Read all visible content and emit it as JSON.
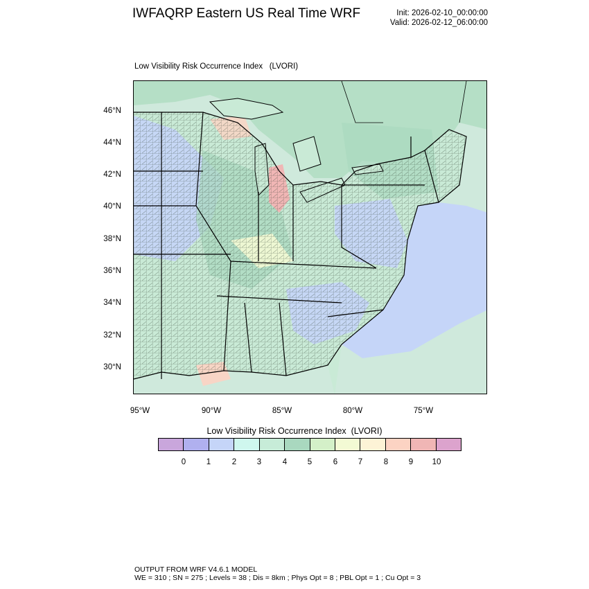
{
  "header": {
    "title": "IWFAQRP Eastern US Real Time WRF",
    "init": "Init: 2026-02-10_00:00:00",
    "valid": "Valid: 2026-02-12_06:00:00"
  },
  "field_title": "Low Visibility Risk Occurrence Index   (LVORI)",
  "map": {
    "lat_labels": [
      "46°N",
      "44°N",
      "42°N",
      "40°N",
      "38°N",
      "36°N",
      "34°N",
      "32°N",
      "30°N"
    ],
    "lon_labels": [
      "95°W",
      "90°W",
      "85°W",
      "80°W",
      "75°W"
    ],
    "colors": {
      "ocean": "#cfe9dc",
      "land_base": "#c9ead6",
      "canada": "#b5dfc6",
      "lakes": "#c9ead6",
      "boundaries": "#000000"
    }
  },
  "colorbar": {
    "title": "Low Visibility Risk Occurrence Index  (LVORI)",
    "labels": [
      "0",
      "1",
      "2",
      "3",
      "4",
      "5",
      "6",
      "7",
      "8",
      "9",
      "10"
    ],
    "colors": [
      "#c9a6dc",
      "#b0b0ef",
      "#c5d5f8",
      "#cff7ee",
      "#c7ecd8",
      "#a9d8bf",
      "#d4f0c8",
      "#f3fad4",
      "#fdf3d6",
      "#fcd3c3",
      "#f0b6b5",
      "#dca3cd"
    ]
  },
  "footer": {
    "line1": "OUTPUT FROM WRF V4.6.1 MODEL",
    "line2": "WE = 310 ; SN = 275 ; Levels = 38 ; Dis = 8km ; Phys Opt = 8 ; PBL Opt = 1 ; Cu Opt = 3"
  }
}
